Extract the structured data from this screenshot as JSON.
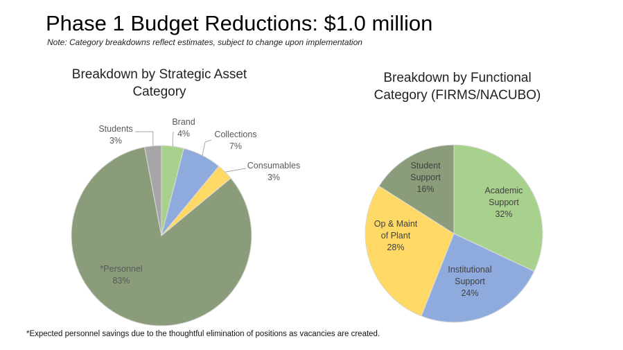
{
  "header": {
    "title": "Phase 1 Budget Reductions: $1.0 million",
    "note": "Note: Category breakdowns reflect estimates, subject to change upon implementation"
  },
  "footnote": "*Expected personnel savings due to the thoughtful elimination of positions as vacancies are created.",
  "chart_data": [
    {
      "type": "pie",
      "title": "Breakdown by Strategic Asset Category",
      "title_lines": [
        "Breakdown by Strategic Asset",
        "Category"
      ],
      "categories": [
        "Brand",
        "Collections",
        "Consumables",
        "*Personnel",
        "Students"
      ],
      "values": [
        4,
        7,
        3,
        83,
        3
      ],
      "value_labels": [
        "4%",
        "7%",
        "3%",
        "83%",
        "3%"
      ],
      "colors": [
        "#a9d18e",
        "#8faadc",
        "#ffd966",
        "#8a9c7a",
        "#a6a6a6"
      ],
      "start": "12 o'clock, clockwise"
    },
    {
      "type": "pie",
      "title": "Breakdown by Functional Category (FIRMS/NACUBO)",
      "title_lines": [
        "Breakdown by Functional",
        "Category (FIRMS/NACUBO)"
      ],
      "categories": [
        "Academic Support",
        "Institutional Support",
        "Op & Maint of Plant",
        "Student Support"
      ],
      "label_lines": [
        [
          "Academic",
          "Support"
        ],
        [
          "Institutional",
          "Support"
        ],
        [
          "Op & Maint",
          "of Plant"
        ],
        [
          "Student",
          "Support"
        ]
      ],
      "values": [
        32,
        24,
        28,
        16
      ],
      "value_labels": [
        "32%",
        "24%",
        "28%",
        "16%"
      ],
      "colors": [
        "#a9d18e",
        "#8faadc",
        "#ffd966",
        "#8a9c7a"
      ],
      "start": "12 o'clock, clockwise"
    }
  ]
}
